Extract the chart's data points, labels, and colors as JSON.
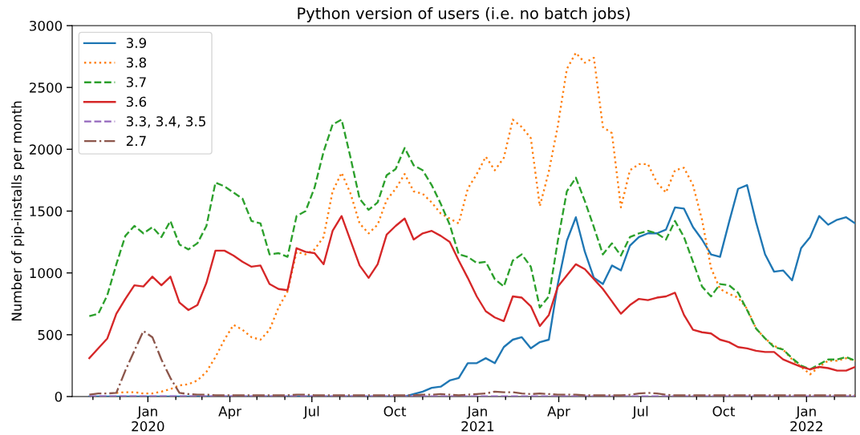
{
  "chart_data": {
    "type": "line",
    "title": "Python version of users (i.e. no batch jobs)",
    "ylabel": "Number of pip-installs per month",
    "x": [
      "2019-10-28",
      "2019-11-07",
      "2019-11-17",
      "2019-11-27",
      "2019-12-07",
      "2019-12-17",
      "2019-12-27",
      "2020-01-06",
      "2020-01-16",
      "2020-01-26",
      "2020-02-05",
      "2020-02-15",
      "2020-02-25",
      "2020-03-06",
      "2020-03-16",
      "2020-03-26",
      "2020-04-05",
      "2020-04-15",
      "2020-04-25",
      "2020-05-05",
      "2020-05-15",
      "2020-05-25",
      "2020-06-04",
      "2020-06-14",
      "2020-06-24",
      "2020-07-04",
      "2020-07-14",
      "2020-07-24",
      "2020-08-03",
      "2020-08-13",
      "2020-08-23",
      "2020-09-02",
      "2020-09-12",
      "2020-09-22",
      "2020-10-02",
      "2020-10-12",
      "2020-10-22",
      "2020-11-01",
      "2020-11-11",
      "2020-11-21",
      "2020-12-01",
      "2020-12-11",
      "2020-12-21",
      "2020-12-31",
      "2021-01-10",
      "2021-01-20",
      "2021-01-30",
      "2021-02-09",
      "2021-02-19",
      "2021-03-01",
      "2021-03-11",
      "2021-03-21",
      "2021-03-31",
      "2021-04-10",
      "2021-04-20",
      "2021-04-30",
      "2021-05-10",
      "2021-05-20",
      "2021-05-30",
      "2021-06-09",
      "2021-06-19",
      "2021-06-29",
      "2021-07-09",
      "2021-07-19",
      "2021-07-29",
      "2021-08-08",
      "2021-08-18",
      "2021-08-28",
      "2021-09-07",
      "2021-09-17",
      "2021-09-27",
      "2021-10-07",
      "2021-10-17",
      "2021-10-27",
      "2021-11-06",
      "2021-11-16",
      "2021-11-26",
      "2021-12-06",
      "2021-12-16",
      "2021-12-26",
      "2022-01-05",
      "2022-01-15",
      "2022-01-25",
      "2022-02-04",
      "2022-02-14",
      "2022-02-24"
    ],
    "series": [
      {
        "name": "3.9",
        "color": "#1f77b4",
        "line_style": "solid",
        "values": [
          0,
          0,
          0,
          0,
          0,
          0,
          0,
          0,
          0,
          0,
          0,
          0,
          0,
          0,
          0,
          0,
          0,
          0,
          0,
          0,
          0,
          0,
          0,
          0,
          0,
          0,
          0,
          0,
          0,
          0,
          0,
          0,
          0,
          0,
          0,
          0,
          20,
          40,
          70,
          80,
          130,
          150,
          270,
          270,
          310,
          270,
          400,
          460,
          480,
          390,
          440,
          460,
          910,
          1260,
          1450,
          1170,
          960,
          910,
          1060,
          1020,
          1220,
          1290,
          1320,
          1320,
          1350,
          1530,
          1520,
          1370,
          1270,
          1150,
          1130,
          1410,
          1680,
          1710,
          1410,
          1150,
          1010,
          1020,
          940,
          1200,
          1290,
          1460,
          1390,
          1430,
          1450,
          1400
        ]
      },
      {
        "name": "3.8",
        "color": "#ff7f0e",
        "line_style": "dotted",
        "values": [
          null,
          null,
          null,
          30,
          35,
          35,
          25,
          25,
          40,
          60,
          90,
          100,
          130,
          200,
          320,
          460,
          580,
          540,
          480,
          460,
          540,
          720,
          850,
          1170,
          1150,
          1190,
          1290,
          1660,
          1810,
          1640,
          1400,
          1320,
          1390,
          1590,
          1680,
          1800,
          1660,
          1640,
          1570,
          1480,
          1440,
          1400,
          1680,
          1800,
          1940,
          1830,
          1930,
          2240,
          2180,
          2090,
          1540,
          1820,
          2190,
          2650,
          2780,
          2700,
          2740,
          2180,
          2130,
          1530,
          1830,
          1880,
          1880,
          1730,
          1650,
          1830,
          1850,
          1710,
          1430,
          1040,
          870,
          830,
          800,
          710,
          550,
          470,
          410,
          380,
          300,
          240,
          180,
          240,
          290,
          290,
          310,
          290
        ]
      },
      {
        "name": "3.7",
        "color": "#2ca02c",
        "line_style": "dashed",
        "values": [
          650,
          670,
          820,
          1070,
          1300,
          1380,
          1320,
          1370,
          1290,
          1420,
          1230,
          1190,
          1240,
          1380,
          1730,
          1700,
          1650,
          1600,
          1420,
          1400,
          1150,
          1160,
          1130,
          1460,
          1500,
          1690,
          1980,
          2200,
          2240,
          1930,
          1600,
          1510,
          1570,
          1790,
          1840,
          2010,
          1870,
          1830,
          1710,
          1560,
          1390,
          1150,
          1130,
          1080,
          1090,
          950,
          890,
          1100,
          1150,
          1050,
          720,
          810,
          1260,
          1660,
          1770,
          1580,
          1370,
          1150,
          1240,
          1140,
          1290,
          1320,
          1340,
          1320,
          1270,
          1420,
          1290,
          1090,
          890,
          810,
          910,
          900,
          840,
          700,
          550,
          470,
          400,
          380,
          310,
          250,
          220,
          260,
          300,
          300,
          320,
          290
        ]
      },
      {
        "name": "3.6",
        "color": "#d62728",
        "line_style": "solid",
        "values": [
          310,
          390,
          470,
          670,
          790,
          900,
          890,
          970,
          900,
          970,
          760,
          700,
          740,
          920,
          1180,
          1180,
          1140,
          1090,
          1050,
          1060,
          910,
          870,
          860,
          1200,
          1170,
          1160,
          1070,
          1340,
          1460,
          1260,
          1060,
          960,
          1070,
          1310,
          1380,
          1440,
          1270,
          1320,
          1340,
          1300,
          1250,
          1100,
          960,
          810,
          690,
          640,
          610,
          810,
          800,
          730,
          570,
          660,
          890,
          980,
          1070,
          1030,
          950,
          870,
          770,
          670,
          740,
          790,
          780,
          800,
          810,
          840,
          660,
          540,
          520,
          510,
          460,
          440,
          400,
          390,
          370,
          360,
          360,
          300,
          270,
          240,
          220,
          240,
          230,
          210,
          210,
          240
        ]
      },
      {
        "name": "3.3, 3.4, 3.5",
        "color": "#9467bd",
        "line_style": "dashed",
        "values": [
          2,
          2,
          2,
          2,
          2,
          2,
          2,
          2,
          2,
          2,
          2,
          2,
          2,
          2,
          2,
          2,
          2,
          2,
          2,
          2,
          2,
          2,
          2,
          2,
          2,
          2,
          2,
          2,
          2,
          2,
          2,
          2,
          2,
          2,
          2,
          2,
          2,
          2,
          2,
          2,
          2,
          2,
          2,
          2,
          2,
          2,
          2,
          2,
          2,
          2,
          2,
          2,
          2,
          2,
          2,
          2,
          2,
          2,
          2,
          2,
          2,
          2,
          2,
          2,
          2,
          2,
          2,
          2,
          2,
          2,
          2,
          2,
          2,
          2,
          2,
          2,
          2,
          2,
          2,
          2,
          2,
          2,
          2,
          2,
          2,
          2
        ]
      },
      {
        "name": "2.7",
        "color": "#8c564b",
        "line_style": "dashdot",
        "values": [
          15,
          25,
          25,
          30,
          210,
          370,
          530,
          480,
          300,
          150,
          30,
          20,
          15,
          15,
          10,
          10,
          10,
          10,
          10,
          10,
          10,
          10,
          10,
          15,
          15,
          10,
          10,
          10,
          10,
          10,
          10,
          10,
          10,
          10,
          10,
          10,
          10,
          15,
          15,
          20,
          15,
          10,
          15,
          20,
          25,
          40,
          35,
          35,
          25,
          20,
          25,
          20,
          15,
          15,
          15,
          10,
          10,
          10,
          10,
          10,
          15,
          25,
          30,
          25,
          15,
          10,
          10,
          10,
          10,
          10,
          10,
          10,
          10,
          10,
          10,
          10,
          10,
          10,
          10,
          10,
          10,
          10,
          10,
          10,
          10,
          10
        ]
      }
    ],
    "xlim": [
      "2019-10-09",
      "2022-02-24"
    ],
    "xticks": [
      {
        "value": "2019-11-01",
        "label": null
      },
      {
        "value": "2019-12-01",
        "label": null
      },
      {
        "value": "2020-01-01",
        "label": "Jan\n2020"
      },
      {
        "value": "2020-02-01",
        "label": null
      },
      {
        "value": "2020-03-01",
        "label": null
      },
      {
        "value": "2020-04-01",
        "label": "Apr"
      },
      {
        "value": "2020-05-01",
        "label": null
      },
      {
        "value": "2020-06-01",
        "label": null
      },
      {
        "value": "2020-07-01",
        "label": "Jul"
      },
      {
        "value": "2020-08-01",
        "label": null
      },
      {
        "value": "2020-09-01",
        "label": null
      },
      {
        "value": "2020-10-01",
        "label": "Oct"
      },
      {
        "value": "2020-11-01",
        "label": null
      },
      {
        "value": "2020-12-01",
        "label": null
      },
      {
        "value": "2021-01-01",
        "label": "Jan\n2021"
      },
      {
        "value": "2021-02-01",
        "label": null
      },
      {
        "value": "2021-03-01",
        "label": null
      },
      {
        "value": "2021-04-01",
        "label": "Apr"
      },
      {
        "value": "2021-05-01",
        "label": null
      },
      {
        "value": "2021-06-01",
        "label": null
      },
      {
        "value": "2021-07-01",
        "label": "Jul"
      },
      {
        "value": "2021-08-01",
        "label": null
      },
      {
        "value": "2021-09-01",
        "label": null
      },
      {
        "value": "2021-10-01",
        "label": "Oct"
      },
      {
        "value": "2021-11-01",
        "label": null
      },
      {
        "value": "2021-12-01",
        "label": null
      },
      {
        "value": "2022-01-01",
        "label": "Jan\n2022"
      },
      {
        "value": "2022-02-01",
        "label": null
      }
    ],
    "ylim": [
      0,
      3000
    ],
    "yticks": [
      0,
      500,
      1000,
      1500,
      2000,
      2500,
      3000
    ],
    "legend": "top left"
  }
}
